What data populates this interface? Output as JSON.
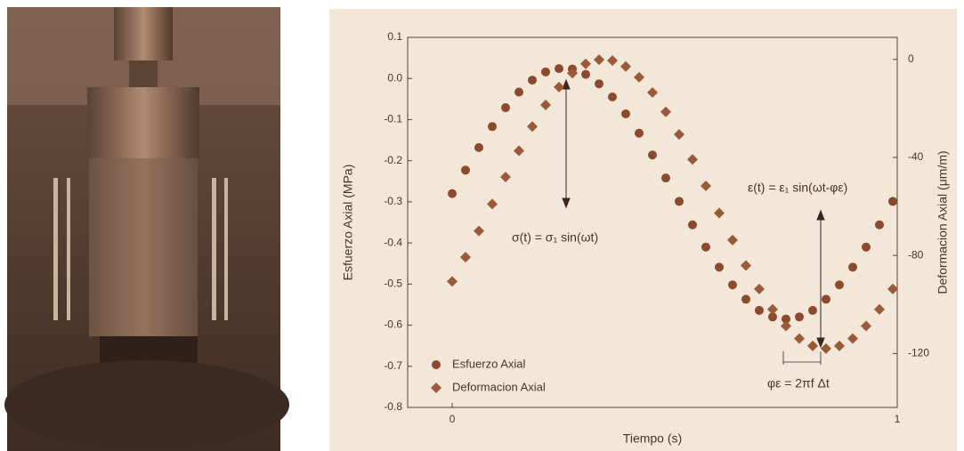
{
  "chart_data": {
    "type": "scatter",
    "xlabel": "Tiempo (s)",
    "ylabel": "Esfuerzo Axial (MPa)",
    "y2label": "Deformacion Axial (μm/m)",
    "xlim": [
      -0.1,
      1.0
    ],
    "ylim": [
      -0.8,
      0.1
    ],
    "y2lim": [
      -142,
      9
    ],
    "xticks": [
      0,
      1
    ],
    "yticks": [
      0.1,
      {
        "value": 0,
        "label": "0.0"
      },
      -0.1,
      -0.2,
      -0.3,
      -0.4,
      -0.5,
      -0.6,
      -0.7,
      -0.8
    ],
    "y2ticks": [
      0,
      -40,
      -80,
      -120
    ],
    "x": [
      0,
      0.03,
      0.06,
      0.09,
      0.12,
      0.15,
      0.18,
      0.21,
      0.24,
      0.27,
      0.3,
      0.33,
      0.36,
      0.39,
      0.42,
      0.45,
      0.48,
      0.51,
      0.54,
      0.57,
      0.6,
      0.63,
      0.66,
      0.69,
      0.72,
      0.75,
      0.78,
      0.81,
      0.84,
      0.87,
      0.9,
      0.93,
      0.96,
      0.99
    ],
    "series": [
      {
        "name": "Esfuerzo Axial",
        "marker": "circle",
        "color": "#8b4a2b",
        "values": [
          -0.28,
          -0.223,
          -0.168,
          -0.117,
          -0.071,
          -0.033,
          -0.004,
          0.016,
          0.024,
          0.023,
          0.01,
          -0.013,
          -0.045,
          -0.086,
          -0.133,
          -0.186,
          -0.242,
          -0.299,
          -0.356,
          -0.41,
          -0.459,
          -0.502,
          -0.537,
          -0.564,
          -0.58,
          -0.585,
          -0.58,
          -0.564,
          -0.537,
          -0.502,
          -0.459,
          -0.41,
          -0.356,
          -0.299
        ]
      },
      {
        "name": "Deformacion Axial",
        "marker": "diamond",
        "color": "#9a5a38",
        "axis": "y2",
        "values": [
          -90.6,
          -80.7,
          -70.0,
          -59,
          -48.0,
          -37.3,
          -27.4,
          -18.6,
          -11.3,
          -5.6,
          -1.8,
          -0.1,
          -0.5,
          -2.9,
          -7.3,
          -13.5,
          -21.4,
          -30.6,
          -40.8,
          -51.6,
          -62.7,
          -73.7,
          -84.1,
          -93.7,
          -102.0,
          -108.8,
          -113.9,
          -116.9,
          -118,
          -116.9,
          -113.9,
          -108.8,
          -102.0,
          -93.7
        ]
      }
    ],
    "annotations": [
      "σ(t) = σ₁ sin(ωt)",
      "ε(t) = ε₁ sin(ωt-φε)",
      "φε = 2πf Δt"
    ],
    "legend": "lower left"
  }
}
